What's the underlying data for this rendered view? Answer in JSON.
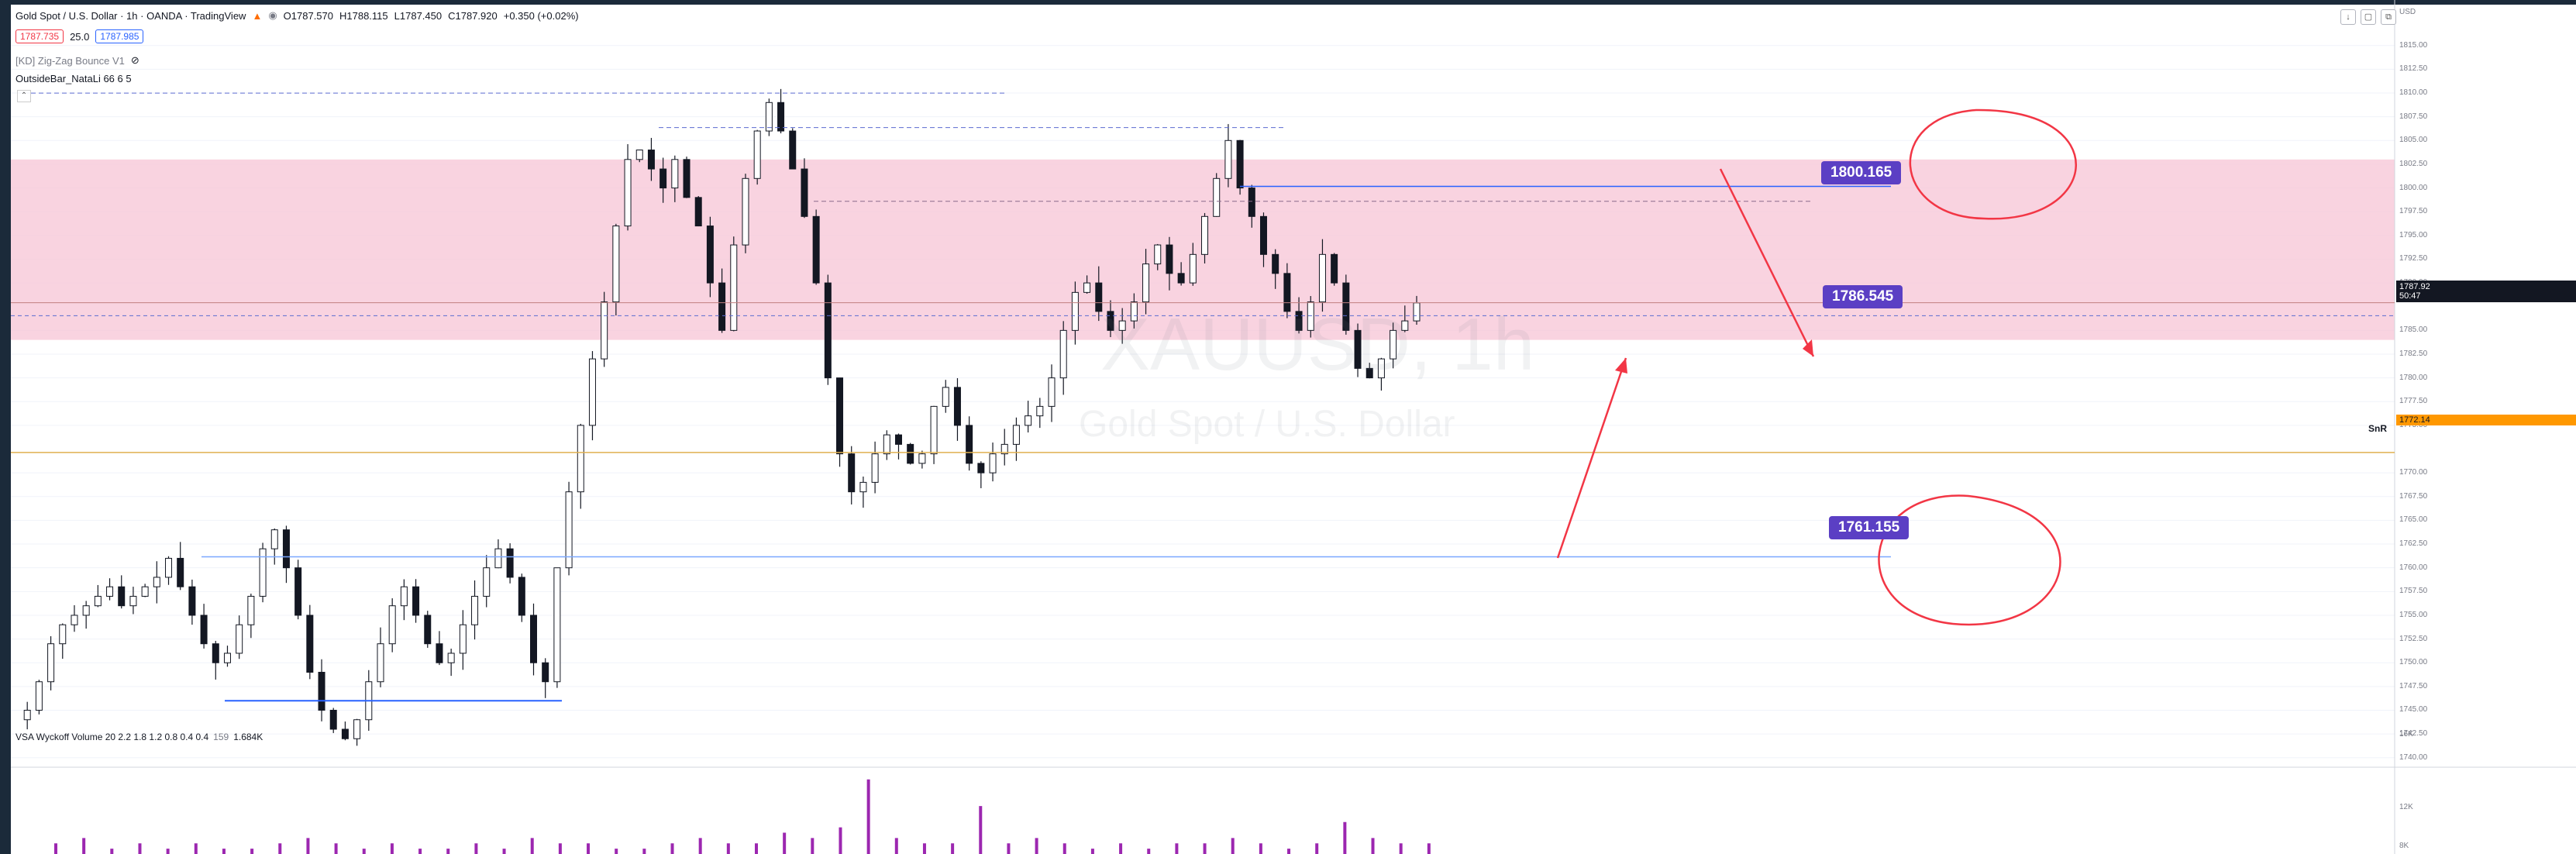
{
  "header": {
    "symbol_title": "Gold Spot / U.S. Dollar · 1h · OANDA · TradingView",
    "open": "O1787.570",
    "high": "H1788.115",
    "low": "L1787.450",
    "close": "C1787.920",
    "change": "+0.350 (+0.02%)",
    "bid": "1787.735",
    "spread": "25.0",
    "ask": "1787.985"
  },
  "indicators": {
    "zigzag": "[KD] Zig-Zag Bounce V1",
    "outside_bar": "OutsideBar_NataLi 66 6 5",
    "volume": "VSA Wyckoff Volume 20 2.2 1.8 1.2 0.8 0.4 0.4",
    "volume_extra1": "159",
    "volume_extra2": "1.684K"
  },
  "watermark": {
    "ticker": "XAUUSD, 1h",
    "name": "Gold Spot / U.S. Dollar"
  },
  "price_axis": {
    "currency": "USD",
    "ticks": [
      "1815.00",
      "1812.50",
      "1810.00",
      "1807.50",
      "1805.00",
      "1802.50",
      "1800.00",
      "1797.50",
      "1795.00",
      "1792.50",
      "1790.00",
      "1785.00",
      "1782.50",
      "1780.00",
      "1777.50",
      "1775.00",
      "1770.00",
      "1767.50",
      "1765.00",
      "1762.50",
      "1760.00",
      "1757.50",
      "1755.00",
      "1752.50",
      "1750.00",
      "1747.50",
      "1745.00",
      "1742.50",
      "1740.00"
    ],
    "current_price": "1787.92",
    "countdown": "50:47",
    "snr_price": "1772.14",
    "snr_label": "SnR",
    "volume_ticks": [
      "16K",
      "12K",
      "8K"
    ]
  },
  "annotations": {
    "resistance_label": "1800.165",
    "mid_label": "1786.545",
    "support_label": "1761.155"
  },
  "colors": {
    "zone": "#f8c8d8",
    "bull": "#131722",
    "bear": "#131722",
    "level_line": "#2962ff",
    "snr_line": "#e0b050",
    "arrow": "#f23645",
    "badge": "#5b3fc4",
    "volume_bar": "#9c27b0"
  },
  "chart_data": {
    "type": "candlestick",
    "title": "Gold Spot / U.S. Dollar · 1h · OANDA",
    "ylim": [
      1739.0,
      1818.0
    ],
    "resistance_zone": [
      1784.0,
      1803.0
    ],
    "levels": {
      "resistance": 1800.165,
      "mid": 1786.545,
      "support": 1761.155,
      "snr": 1772.14,
      "current": 1787.92,
      "low_bracket": 1746.0
    },
    "swing_highs": [
      1809.5,
      1806.2
    ],
    "close_path": [
      1744,
      1745,
      1748,
      1752,
      1754,
      1755,
      1756,
      1757,
      1758,
      1756,
      1757,
      1758,
      1759,
      1761,
      1758,
      1755,
      1752,
      1750,
      1751,
      1754,
      1757,
      1762,
      1764,
      1760,
      1755,
      1749,
      1745,
      1743,
      1742,
      1744,
      1748,
      1752,
      1756,
      1758,
      1755,
      1752,
      1750,
      1751,
      1754,
      1757,
      1760,
      1762,
      1759,
      1755,
      1750,
      1748,
      1760,
      1768,
      1775,
      1782,
      1788,
      1796,
      1803,
      1804,
      1802,
      1800,
      1803,
      1799,
      1796,
      1790,
      1785,
      1794,
      1801,
      1806,
      1809,
      1806,
      1802,
      1797,
      1790,
      1780,
      1772,
      1768,
      1769,
      1772,
      1774,
      1773,
      1771,
      1772,
      1777,
      1779,
      1775,
      1771,
      1770,
      1772,
      1773,
      1775,
      1776,
      1777,
      1780,
      1785,
      1789,
      1790,
      1787,
      1785,
      1786,
      1788,
      1792,
      1794,
      1791,
      1790,
      1793,
      1797,
      1801,
      1805,
      1800,
      1797,
      1793,
      1791,
      1787,
      1785,
      1788,
      1793,
      1790,
      1785,
      1781,
      1780,
      1782,
      1785,
      1786,
      1787.9
    ],
    "volume": [
      2,
      3,
      1,
      2,
      1,
      2,
      1,
      1,
      2,
      3,
      2,
      1,
      2,
      1,
      1,
      2,
      1,
      3,
      2,
      2,
      1,
      1,
      2,
      3,
      2,
      2,
      4,
      3,
      5,
      14,
      3,
      2,
      2,
      9,
      2,
      3,
      2,
      1,
      2,
      1,
      2,
      2,
      3,
      2,
      1,
      2,
      6,
      3,
      2,
      2
    ]
  }
}
